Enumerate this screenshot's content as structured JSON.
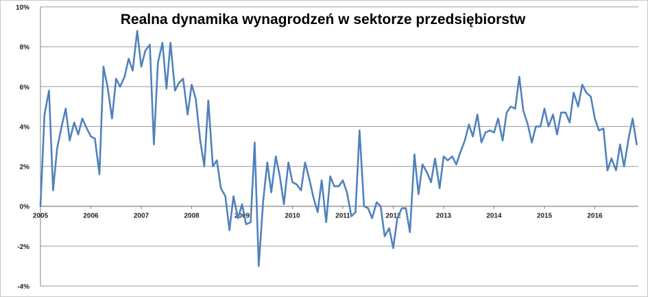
{
  "chart_data": {
    "type": "line",
    "title": "Realna dynamika wynagrodzeń w sektorze przedsiębiorstw",
    "xlabel": "",
    "ylabel": "",
    "ylim": [
      -4,
      10
    ],
    "xlim": [
      2005,
      2016.9
    ],
    "y_tick_labels": [
      "-4%",
      "-2%",
      "0%",
      "2%",
      "4%",
      "6%",
      "8%",
      "10%"
    ],
    "x_tick_labels": [
      "2005",
      "2006",
      "2007",
      "2008",
      "2009",
      "2010",
      "2011",
      "2012",
      "2013",
      "2014",
      "2015",
      "2016"
    ],
    "grid": true,
    "legend": "none",
    "colors": {
      "line": "#4f81bd",
      "grid": "#9a9a9a",
      "axis": "#808080"
    },
    "series": [
      {
        "x": [
          2005.0,
          2005.08,
          2005.17,
          2005.25,
          2005.33,
          2005.42,
          2005.5,
          2005.58,
          2005.67,
          2005.75,
          2005.83,
          2005.92,
          2006.0,
          2006.08,
          2006.17,
          2006.25,
          2006.33,
          2006.42,
          2006.5,
          2006.58,
          2006.67,
          2006.75,
          2006.83,
          2006.92,
          2007.0,
          2007.08,
          2007.17,
          2007.25,
          2007.33,
          2007.42,
          2007.5,
          2007.58,
          2007.67,
          2007.75,
          2007.83,
          2007.92,
          2008.0,
          2008.08,
          2008.17,
          2008.25,
          2008.33,
          2008.42,
          2008.5,
          2008.58,
          2008.67,
          2008.75,
          2008.83,
          2008.92,
          2009.0,
          2009.08,
          2009.17,
          2009.25,
          2009.33,
          2009.42,
          2009.5,
          2009.58,
          2009.67,
          2009.75,
          2009.83,
          2009.92,
          2010.0,
          2010.08,
          2010.17,
          2010.25,
          2010.33,
          2010.42,
          2010.5,
          2010.58,
          2010.67,
          2010.75,
          2010.83,
          2010.92,
          2011.0,
          2011.08,
          2011.17,
          2011.25,
          2011.33,
          2011.42,
          2011.5,
          2011.58,
          2011.67,
          2011.75,
          2011.83,
          2011.92,
          2012.0,
          2012.08,
          2012.17,
          2012.25,
          2012.33,
          2012.42,
          2012.5,
          2012.58,
          2012.67,
          2012.75,
          2012.83,
          2012.92,
          2013.0,
          2013.08,
          2013.17,
          2013.25,
          2013.33,
          2013.42,
          2013.5,
          2013.58,
          2013.67,
          2013.75,
          2013.83,
          2013.92,
          2014.0,
          2014.08,
          2014.17,
          2014.25,
          2014.33,
          2014.42,
          2014.5,
          2014.58,
          2014.67,
          2014.75,
          2014.83,
          2014.92,
          2015.0,
          2015.08,
          2015.17,
          2015.25,
          2015.33,
          2015.42,
          2015.5,
          2015.58,
          2015.67,
          2015.75,
          2015.83,
          2015.92,
          2016.0,
          2016.08,
          2016.17,
          2016.25,
          2016.33,
          2016.42,
          2016.5,
          2016.58,
          2016.67,
          2016.75,
          2016.83
        ],
        "values": [
          0.0,
          4.6,
          5.8,
          0.8,
          2.9,
          4.0,
          4.9,
          3.3,
          4.2,
          3.6,
          4.4,
          3.9,
          3.5,
          3.4,
          1.6,
          7.0,
          6.0,
          4.4,
          6.4,
          6.0,
          6.5,
          7.4,
          6.8,
          8.8,
          7.0,
          7.8,
          8.1,
          3.1,
          7.2,
          8.2,
          5.9,
          8.2,
          5.8,
          6.2,
          6.4,
          4.6,
          6.1,
          5.4,
          3.3,
          2.0,
          5.3,
          2.0,
          2.3,
          0.9,
          0.5,
          -1.2,
          0.5,
          -0.6,
          0.1,
          -0.9,
          -0.8,
          3.2,
          -3.0,
          0.3,
          2.2,
          0.7,
          2.5,
          1.5,
          0.1,
          2.2,
          1.2,
          1.1,
          0.8,
          2.2,
          1.4,
          0.4,
          -0.3,
          1.3,
          -0.8,
          1.5,
          1.0,
          1.0,
          1.3,
          0.7,
          -0.5,
          -0.3,
          3.8,
          0.0,
          -0.1,
          -0.6,
          0.2,
          0.0,
          -1.5,
          -1.1,
          -2.1,
          -0.6,
          -0.1,
          -0.1,
          -1.3,
          2.6,
          0.6,
          2.1,
          1.7,
          1.2,
          2.4,
          0.9,
          2.5,
          2.3,
          2.5,
          2.1,
          2.7,
          3.3,
          4.1,
          3.5,
          4.6,
          3.2,
          3.7,
          3.8,
          3.7,
          4.4,
          3.3,
          4.7,
          5.0,
          4.9,
          6.5,
          4.8,
          4.1,
          3.2,
          4.0,
          4.0,
          4.9,
          4.0,
          4.6,
          3.6,
          4.7,
          4.7,
          4.2,
          5.7,
          5.0,
          6.1,
          5.7,
          5.5,
          4.4,
          3.8,
          3.9,
          1.8,
          2.4,
          1.8,
          3.1,
          2.0,
          3.4,
          4.4,
          3.1
        ]
      }
    ]
  }
}
